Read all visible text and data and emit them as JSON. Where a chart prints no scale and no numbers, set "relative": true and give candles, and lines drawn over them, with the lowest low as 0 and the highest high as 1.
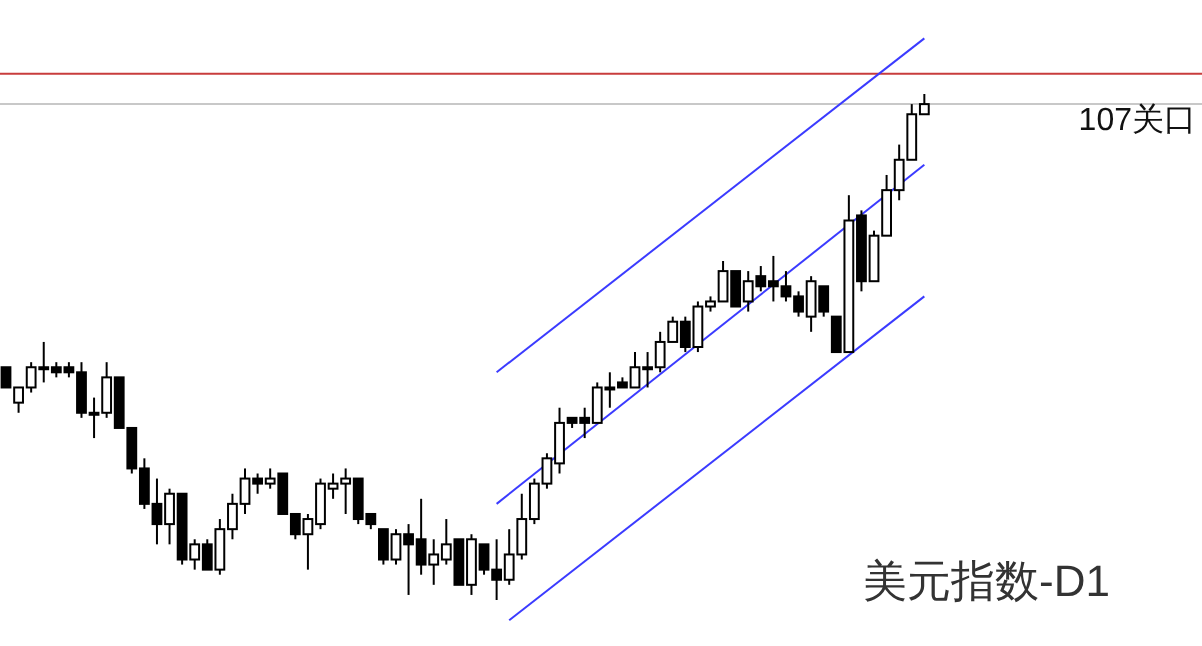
{
  "chart_data": {
    "type": "candlestick",
    "relative": true,
    "categories": [
      null,
      null,
      null,
      null,
      null,
      null,
      null,
      null,
      null,
      null,
      null,
      null,
      null,
      null,
      null,
      null,
      null,
      null,
      null,
      null,
      null,
      null,
      null,
      null,
      null,
      null,
      null,
      null,
      null,
      null,
      null,
      null,
      null,
      null,
      null,
      null,
      null,
      null,
      null,
      null,
      null,
      null,
      null,
      null,
      null,
      null,
      null,
      null,
      null,
      null,
      null,
      null,
      null,
      null,
      null,
      null,
      null,
      null,
      null,
      null,
      null,
      null,
      null,
      null,
      null,
      null,
      null,
      null,
      null,
      null,
      null,
      null,
      null,
      null
    ],
    "ohlc": [
      [
        0.46,
        0.46,
        0.42,
        0.42
      ],
      [
        0.39,
        0.42,
        0.37,
        0.42
      ],
      [
        0.42,
        0.47,
        0.41,
        0.46
      ],
      [
        0.46,
        0.51,
        0.43,
        0.46
      ],
      [
        0.46,
        0.47,
        0.44,
        0.45
      ],
      [
        0.46,
        0.47,
        0.44,
        0.45
      ],
      [
        0.45,
        0.47,
        0.36,
        0.37
      ],
      [
        0.37,
        0.4,
        0.32,
        0.37
      ],
      [
        0.37,
        0.47,
        0.36,
        0.44
      ],
      [
        0.44,
        0.44,
        0.34,
        0.34
      ],
      [
        0.34,
        0.34,
        0.25,
        0.26
      ],
      [
        0.26,
        0.28,
        0.18,
        0.19
      ],
      [
        0.19,
        0.24,
        0.11,
        0.15
      ],
      [
        0.15,
        0.22,
        0.11,
        0.21
      ],
      [
        0.21,
        0.21,
        0.07,
        0.08
      ],
      [
        0.08,
        0.12,
        0.06,
        0.11
      ],
      [
        0.11,
        0.12,
        0.06,
        0.06
      ],
      [
        0.06,
        0.16,
        0.05,
        0.14
      ],
      [
        0.14,
        0.21,
        0.12,
        0.19
      ],
      [
        0.19,
        0.26,
        0.17,
        0.24
      ],
      [
        0.24,
        0.25,
        0.21,
        0.23
      ],
      [
        0.23,
        0.26,
        0.22,
        0.24
      ],
      [
        0.25,
        0.25,
        0.17,
        0.17
      ],
      [
        0.17,
        0.17,
        0.12,
        0.13
      ],
      [
        0.13,
        0.17,
        0.06,
        0.16
      ],
      [
        0.15,
        0.24,
        0.14,
        0.23
      ],
      [
        0.22,
        0.25,
        0.2,
        0.23
      ],
      [
        0.23,
        0.26,
        0.17,
        0.24
      ],
      [
        0.24,
        0.24,
        0.15,
        0.16
      ],
      [
        0.17,
        0.17,
        0.14,
        0.15
      ],
      [
        0.14,
        0.14,
        0.07,
        0.08
      ],
      [
        0.08,
        0.14,
        0.07,
        0.13
      ],
      [
        0.13,
        0.15,
        0.01,
        0.11
      ],
      [
        0.12,
        0.2,
        0.05,
        0.07
      ],
      [
        0.07,
        0.12,
        0.03,
        0.09
      ],
      [
        0.08,
        0.16,
        0.07,
        0.11
      ],
      [
        0.12,
        0.12,
        0.03,
        0.03
      ],
      [
        0.03,
        0.13,
        0.01,
        0.12
      ],
      [
        0.11,
        0.11,
        0.05,
        0.06
      ],
      [
        0.06,
        0.12,
        0,
        0.04
      ],
      [
        0.04,
        0.14,
        0.03,
        0.09
      ],
      [
        0.09,
        0.21,
        0.08,
        0.16
      ],
      [
        0.16,
        0.24,
        0.15,
        0.23
      ],
      [
        0.23,
        0.29,
        0.22,
        0.28
      ],
      [
        0.27,
        0.38,
        0.25,
        0.35
      ],
      [
        0.36,
        0.36,
        0.34,
        0.35
      ],
      [
        0.36,
        0.38,
        0.32,
        0.35
      ],
      [
        0.35,
        0.43,
        0.35,
        0.42
      ],
      [
        0.42,
        0.45,
        0.38,
        0.42
      ],
      [
        0.43,
        0.44,
        0.42,
        0.42
      ],
      [
        0.42,
        0.49,
        0.42,
        0.46
      ],
      [
        0.46,
        0.49,
        0.42,
        0.46
      ],
      [
        0.46,
        0.53,
        0.45,
        0.51
      ],
      [
        0.51,
        0.56,
        0.51,
        0.55
      ],
      [
        0.55,
        0.56,
        0.49,
        0.5
      ],
      [
        0.5,
        0.59,
        0.49,
        0.58
      ],
      [
        0.58,
        0.6,
        0.57,
        0.59
      ],
      [
        0.59,
        0.67,
        0.59,
        0.65
      ],
      [
        0.65,
        0.65,
        0.58,
        0.58
      ],
      [
        0.59,
        0.65,
        0.57,
        0.63
      ],
      [
        0.64,
        0.66,
        0.61,
        0.62
      ],
      [
        0.63,
        0.68,
        0.59,
        0.62
      ],
      [
        0.62,
        0.65,
        0.59,
        0.6
      ],
      [
        0.6,
        0.61,
        0.56,
        0.57
      ],
      [
        0.56,
        0.64,
        0.53,
        0.63
      ],
      [
        0.62,
        0.62,
        0.56,
        0.57
      ],
      [
        0.56,
        0.56,
        0.49,
        0.49
      ],
      [
        0.49,
        0.8,
        0.49,
        0.75
      ],
      [
        0.76,
        0.77,
        0.61,
        0.63
      ],
      [
        0.63,
        0.73,
        0.63,
        0.72
      ],
      [
        0.72,
        0.84,
        0.72,
        0.81
      ],
      [
        0.81,
        0.9,
        0.79,
        0.87
      ],
      [
        0.87,
        0.98,
        0.87,
        0.96
      ],
      [
        0.96,
        1,
        0.96,
        0.98
      ]
    ],
    "series": [
      {
        "type": "line",
        "color": "#3b3bff",
        "values": [
          null,
          null,
          null,
          null,
          null,
          null,
          null,
          null,
          null,
          null,
          null,
          null,
          null,
          null,
          null,
          null,
          null,
          null,
          null,
          null,
          null,
          null,
          null,
          null,
          null,
          null,
          null,
          null,
          null,
          null,
          null,
          null,
          null,
          null,
          null,
          null,
          null,
          null,
          null,
          0.45,
          null,
          null,
          null,
          null,
          null,
          null,
          null,
          null,
          null,
          null,
          null,
          null,
          null,
          null,
          null,
          null,
          null,
          null,
          null,
          null,
          null,
          null,
          null,
          null,
          null,
          null,
          null,
          null,
          null,
          null,
          null,
          null,
          null,
          1.11
        ]
      },
      {
        "type": "line",
        "color": "#3b3bff",
        "values": [
          null,
          null,
          null,
          null,
          null,
          null,
          null,
          null,
          null,
          null,
          null,
          null,
          null,
          null,
          null,
          null,
          null,
          null,
          null,
          null,
          null,
          null,
          null,
          null,
          null,
          null,
          null,
          null,
          null,
          null,
          null,
          null,
          null,
          null,
          null,
          null,
          null,
          null,
          null,
          0.19,
          null,
          null,
          null,
          null,
          null,
          null,
          null,
          null,
          null,
          null,
          null,
          null,
          null,
          null,
          null,
          null,
          null,
          null,
          null,
          null,
          null,
          null,
          null,
          null,
          null,
          null,
          null,
          null,
          null,
          null,
          null,
          null,
          null,
          0.86
        ]
      },
      {
        "type": "line",
        "color": "#3b3bff",
        "values": [
          null,
          null,
          null,
          null,
          null,
          null,
          null,
          null,
          null,
          null,
          null,
          null,
          null,
          null,
          null,
          null,
          null,
          null,
          null,
          null,
          null,
          null,
          null,
          null,
          null,
          null,
          null,
          null,
          null,
          null,
          null,
          null,
          null,
          null,
          null,
          null,
          null,
          null,
          null,
          null,
          -0.04,
          null,
          null,
          null,
          null,
          null,
          null,
          null,
          null,
          null,
          null,
          null,
          null,
          null,
          null,
          null,
          null,
          null,
          null,
          null,
          null,
          null,
          null,
          null,
          null,
          null,
          null,
          null,
          null,
          null,
          null,
          null,
          null,
          0.6
        ]
      }
    ],
    "ref_lines": [
      {
        "axis": "y",
        "value": 0.98,
        "label": "107关口",
        "color": "#c8c8c8"
      },
      {
        "axis": "y",
        "value": 1.04,
        "color": "#c83c3c"
      }
    ],
    "annotations": [
      "美元指数-D1"
    ]
  }
}
